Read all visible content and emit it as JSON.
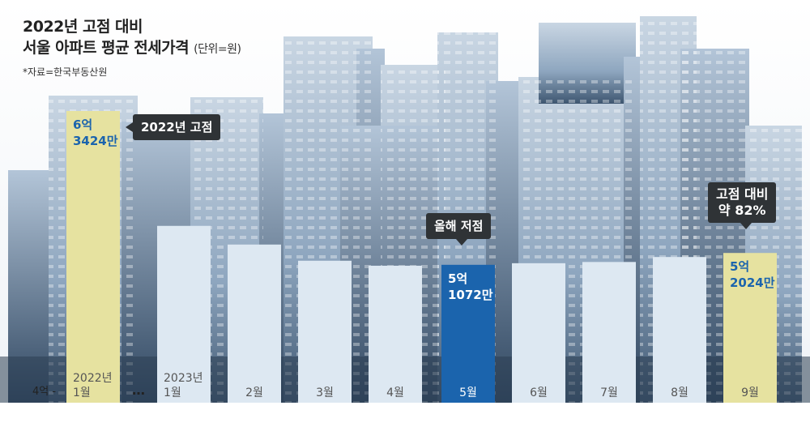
{
  "title_line1": "2022년 고점 대비",
  "title_line2": "서울 아파트 평균 전세가격",
  "unit": "(단위=원)",
  "source": "*자료=한국부동산원",
  "chart_data": {
    "type": "bar",
    "title": "2022년 고점 대비 서울 아파트 평균 전세가격",
    "ylabel": "(단위=원)",
    "y_baseline_label": "4억 -",
    "axis_gap_marker": "…",
    "ylim": [
      400000000,
      650000000
    ],
    "categories": [
      "2022년 1월",
      "2023년 1월",
      "2월",
      "3월",
      "4월",
      "5월",
      "6월",
      "7월",
      "8월",
      "9월"
    ],
    "category_lines": [
      [
        "2022년",
        "1월"
      ],
      [
        "2023년",
        "1월"
      ],
      [
        "2월"
      ],
      [
        "3월"
      ],
      [
        "4월"
      ],
      [
        "5월"
      ],
      [
        "6월"
      ],
      [
        "7월"
      ],
      [
        "8월"
      ],
      [
        "9월"
      ]
    ],
    "values": [
      634240000,
      542000000,
      527000000,
      514000000,
      510000000,
      510720000,
      512000000,
      513000000,
      517000000,
      520240000
    ],
    "value_labels": [
      [
        "6억",
        "3424만"
      ],
      null,
      null,
      null,
      null,
      [
        "5억",
        "1072만"
      ],
      null,
      null,
      null,
      [
        "5억",
        "2024만"
      ]
    ],
    "bar_colors": [
      "#e6e2a0",
      "#dde8f2",
      "#dde8f2",
      "#dde8f2",
      "#dde8f2",
      "#1b64ad",
      "#dde8f2",
      "#dde8f2",
      "#dde8f2",
      "#e6e2a0"
    ],
    "callouts": {
      "peak": "2022년 고점",
      "low": "올해 저점",
      "now_line1": "고점 대비",
      "now_line2": "약 82%"
    }
  }
}
